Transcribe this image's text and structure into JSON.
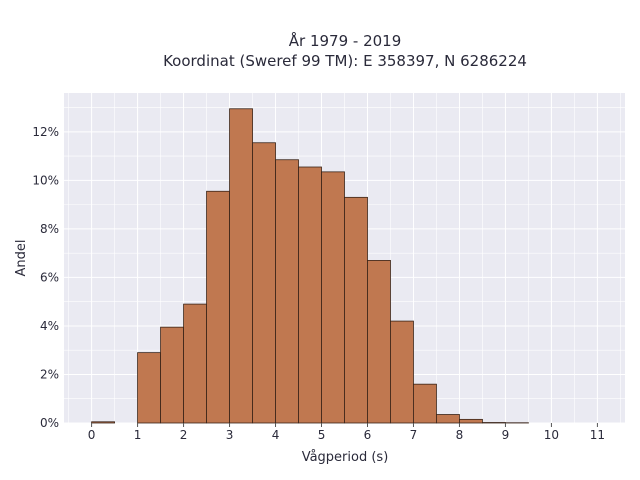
{
  "chart_data": {
    "type": "bar",
    "title": "År 1979 - 2019",
    "subtitle": "Koordinat (Sweref 99 TM): E 358397, N 6286224",
    "xlabel": "Vågperiod (s)",
    "ylabel": "Andel",
    "bin_width": 0.5,
    "bins": [
      {
        "x0": 0.0,
        "value": 0.05
      },
      {
        "x0": 0.5,
        "value": 0.0
      },
      {
        "x0": 1.0,
        "value": 2.9
      },
      {
        "x0": 1.5,
        "value": 3.95
      },
      {
        "x0": 2.0,
        "value": 4.9
      },
      {
        "x0": 2.5,
        "value": 9.55
      },
      {
        "x0": 3.0,
        "value": 12.95
      },
      {
        "x0": 3.5,
        "value": 11.55
      },
      {
        "x0": 4.0,
        "value": 10.85
      },
      {
        "x0": 4.5,
        "value": 10.55
      },
      {
        "x0": 5.0,
        "value": 10.35
      },
      {
        "x0": 5.5,
        "value": 9.3
      },
      {
        "x0": 6.0,
        "value": 6.7
      },
      {
        "x0": 6.5,
        "value": 4.2
      },
      {
        "x0": 7.0,
        "value": 1.6
      },
      {
        "x0": 7.5,
        "value": 0.35
      },
      {
        "x0": 8.0,
        "value": 0.15
      },
      {
        "x0": 8.5,
        "value": 0.02
      },
      {
        "x0": 9.0,
        "value": 0.01
      }
    ],
    "xlim": [
      -0.6,
      11.6
    ],
    "ylim": [
      0,
      13.6
    ],
    "x_ticks": [
      0,
      1,
      2,
      3,
      4,
      5,
      6,
      7,
      8,
      9,
      10,
      11
    ],
    "x_tick_labels": [
      "0",
      "1",
      "2",
      "3",
      "4",
      "5",
      "6",
      "7",
      "8",
      "9",
      "10",
      "11"
    ],
    "y_ticks": [
      0,
      2,
      4,
      6,
      8,
      10,
      12
    ],
    "y_tick_labels": [
      "0%",
      "2%",
      "4%",
      "6%",
      "8%",
      "10%",
      "12%"
    ],
    "grid": true,
    "colors": {
      "bar": "#c07850",
      "bar_edge": "#3a2418",
      "plot_bg": "#eaeaf2",
      "grid": "#ffffff"
    }
  }
}
